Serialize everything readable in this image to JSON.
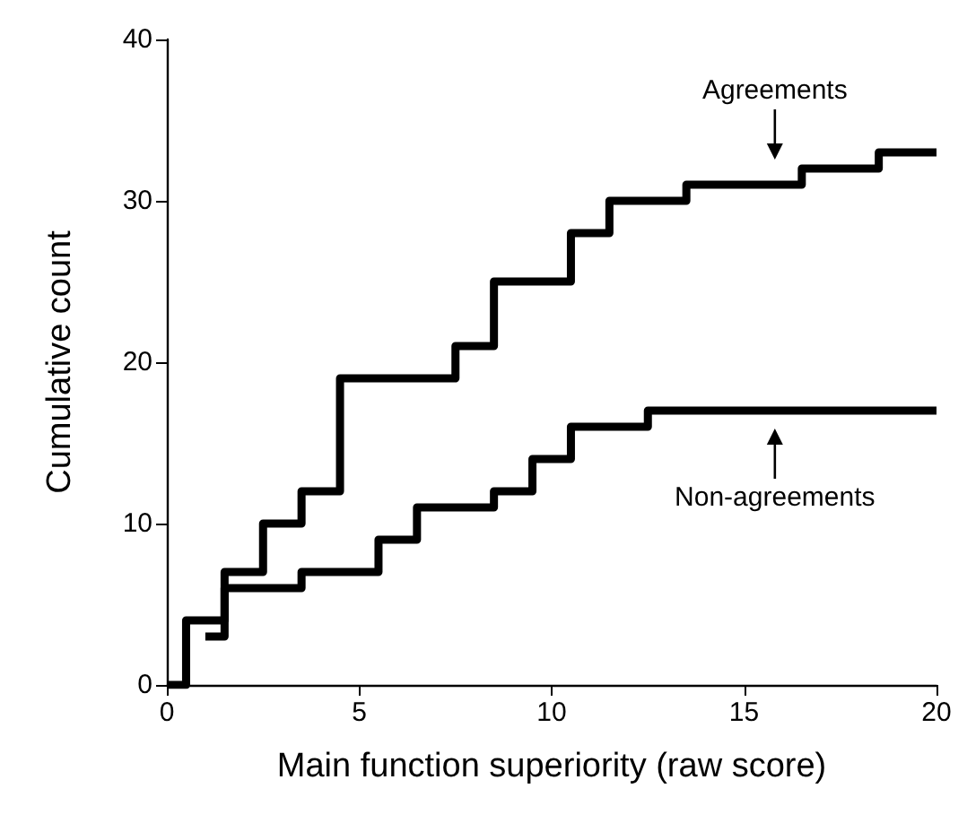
{
  "chart_data": {
    "type": "step",
    "xlabel": "Main function superiority (raw score)",
    "ylabel": "Cumulative count",
    "xlim": [
      0,
      20
    ],
    "xticks": [
      0,
      5,
      10,
      15,
      20
    ],
    "ylim": [
      0,
      40
    ],
    "yticks": [
      0,
      10,
      20,
      30,
      40
    ],
    "grid": false,
    "marker": "none",
    "line_style": "solid",
    "series": [
      {
        "color": "#000000",
        "x": [
          0,
          0.5,
          1.5,
          2.5,
          3.5,
          4.5,
          7.5,
          8.5,
          10.5,
          11.5,
          13.5,
          16.5,
          18.5,
          20
        ],
        "values": [
          0,
          4,
          7,
          10,
          12,
          19,
          21,
          25,
          28,
          30,
          31,
          32,
          33,
          33
        ]
      },
      {
        "color": "#000000",
        "x": [
          1,
          1.5,
          3.5,
          5.5,
          6.5,
          8.5,
          9.5,
          10.5,
          12.5,
          20
        ],
        "values": [
          3,
          6,
          7,
          9,
          11,
          12,
          14,
          16,
          17,
          17
        ]
      }
    ],
    "annotations": [
      {
        "text": "Agreements",
        "x": 15.8,
        "y": 31
      },
      {
        "text": "Non-agreements",
        "x": 15.8,
        "y": 17
      }
    ]
  }
}
